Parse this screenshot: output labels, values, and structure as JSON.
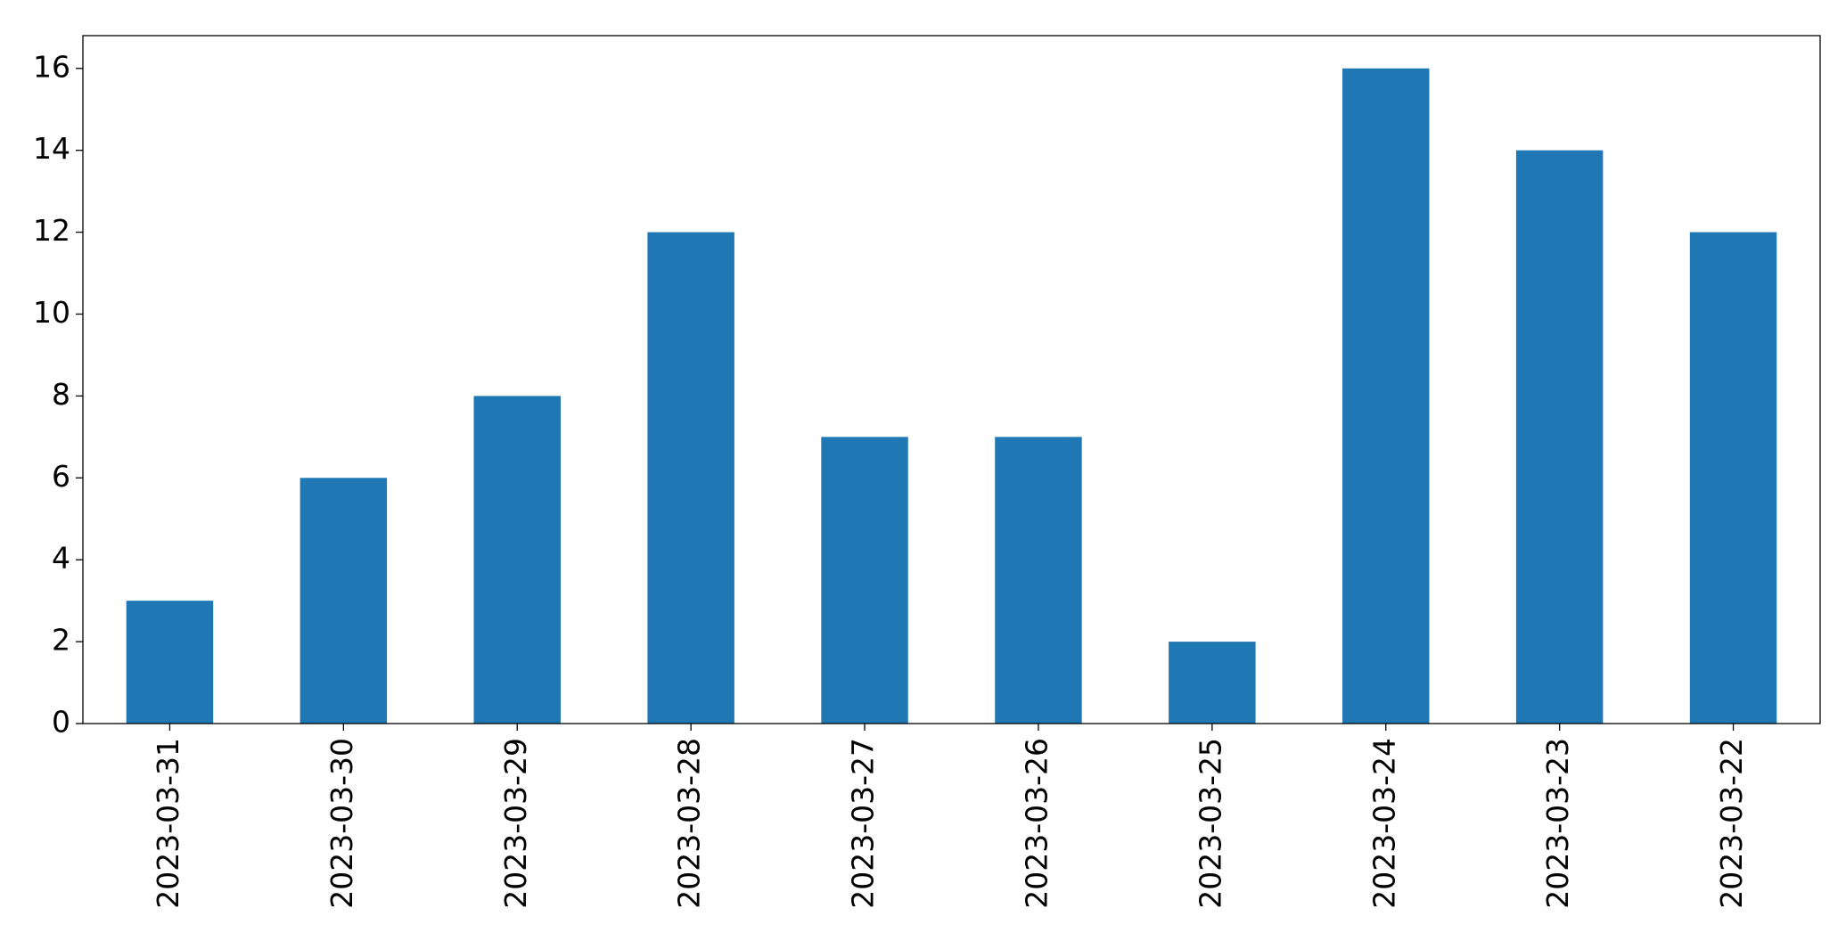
{
  "chart_data": {
    "type": "bar",
    "categories": [
      "2023-03-31",
      "2023-03-30",
      "2023-03-29",
      "2023-03-28",
      "2023-03-27",
      "2023-03-26",
      "2023-03-25",
      "2023-03-24",
      "2023-03-23",
      "2023-03-22"
    ],
    "values": [
      3,
      6,
      8,
      12,
      7,
      7,
      2,
      16,
      14,
      12
    ],
    "color": "#1f77b4",
    "ylim": [
      0,
      16.8
    ],
    "yticks": [
      0,
      2,
      4,
      6,
      8,
      10,
      12,
      14,
      16
    ],
    "grid": false
  }
}
